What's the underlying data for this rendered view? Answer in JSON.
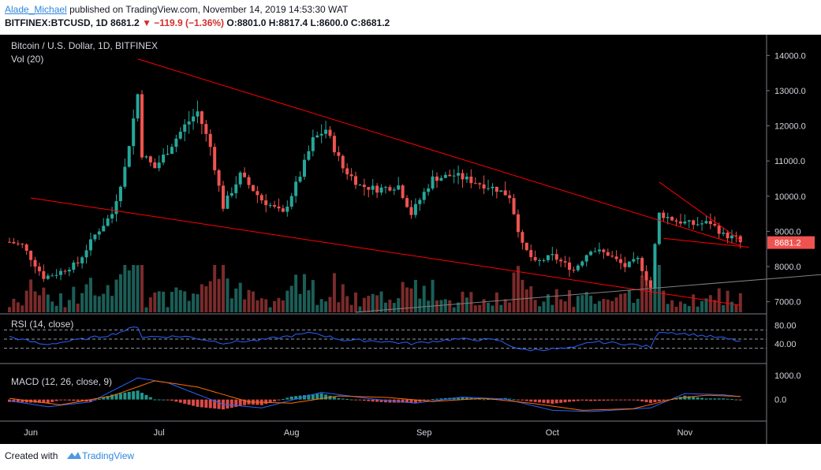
{
  "header": {
    "author": "Alade_Michael",
    "published_text": "published on TradingView.com, November 14, 2019 14:53:30 WAT",
    "symbol": "BITFINEX:BTCUSD, 1D",
    "last": "8681.2",
    "change": "−119.9 (−1.36%)",
    "open": "O:8801.0",
    "high": "H:8817.4",
    "low": "L:8600.0",
    "close": "C:8681.2",
    "change_color": "#d32f2f"
  },
  "footer": {
    "created_with": "Created with",
    "brand": "TradingView"
  },
  "chart_data": {
    "type": "candlestick",
    "title": "Bitcoin / U.S. Dollar, 1D, BITFINEX",
    "volume_label": "Vol (20)",
    "price_axis_ticks": [
      "14000.0",
      "13000.0",
      "12000.0",
      "11000.0",
      "10000.0",
      "9000.0",
      "8000.0",
      "7000.0"
    ],
    "price_range": [
      6700,
      14500
    ],
    "last_price_label": "8681.2",
    "x_tick_labels": [
      "Jun",
      "Jul",
      "Aug",
      "Sep",
      "Oct",
      "Nov"
    ],
    "colors": {
      "up": "#26a69a",
      "down": "#ef5350",
      "trendline": "#ff0000",
      "support": "#808080",
      "rsi": "#2962ff",
      "macd": "#2962ff",
      "signal": "#ff6d00",
      "background": "#000000"
    },
    "price_anchors": [
      [
        "2019-05-27",
        8700
      ],
      [
        "2019-05-30",
        8600
      ],
      [
        "2019-06-04",
        7700
      ],
      [
        "2019-06-07",
        7800
      ],
      [
        "2019-06-12",
        8100
      ],
      [
        "2019-06-16",
        8900
      ],
      [
        "2019-06-20",
        9500
      ],
      [
        "2019-06-23",
        10800
      ],
      [
        "2019-06-26",
        12900
      ],
      [
        "2019-06-27",
        11200
      ],
      [
        "2019-06-30",
        10800
      ],
      [
        "2019-07-03",
        11300
      ],
      [
        "2019-07-07",
        12000
      ],
      [
        "2019-07-10",
        12400
      ],
      [
        "2019-07-13",
        11400
      ],
      [
        "2019-07-16",
        9700
      ],
      [
        "2019-07-20",
        10600
      ],
      [
        "2019-07-25",
        9900
      ],
      [
        "2019-07-30",
        9500
      ],
      [
        "2019-08-03",
        10600
      ],
      [
        "2019-08-06",
        11600
      ],
      [
        "2019-08-09",
        11900
      ],
      [
        "2019-08-13",
        10800
      ],
      [
        "2019-08-17",
        10300
      ],
      [
        "2019-08-21",
        10200
      ],
      [
        "2019-08-26",
        10300
      ],
      [
        "2019-08-29",
        9500
      ],
      [
        "2019-09-03",
        10500
      ],
      [
        "2019-09-08",
        10600
      ],
      [
        "2019-09-13",
        10400
      ],
      [
        "2019-09-18",
        10200
      ],
      [
        "2019-09-21",
        10000
      ],
      [
        "2019-09-24",
        8600
      ],
      [
        "2019-09-27",
        8100
      ],
      [
        "2019-10-01",
        8300
      ],
      [
        "2019-10-06",
        7900
      ],
      [
        "2019-10-10",
        8500
      ],
      [
        "2019-10-14",
        8350
      ],
      [
        "2019-10-18",
        8000
      ],
      [
        "2019-10-21",
        8200
      ],
      [
        "2019-10-24",
        7400
      ],
      [
        "2019-10-25",
        8600
      ],
      [
        "2019-10-26",
        9500
      ],
      [
        "2019-10-30",
        9300
      ],
      [
        "2019-11-03",
        9200
      ],
      [
        "2019-11-07",
        9250
      ],
      [
        "2019-11-10",
        8900
      ],
      [
        "2019-11-13",
        8800
      ],
      [
        "2019-11-14",
        8681.2
      ]
    ],
    "trendlines": [
      {
        "name": "upper-channel",
        "from": [
          "2019-06-26",
          13900
        ],
        "to": [
          "2019-11-14",
          8600
        ]
      },
      {
        "name": "lower-channel",
        "from": [
          "2019-06-01",
          9950
        ],
        "to": [
          "2019-11-14",
          6900
        ]
      },
      {
        "name": "wedge-upper",
        "from": [
          "2019-10-26",
          10400
        ],
        "to": [
          "2019-11-14",
          8750
        ]
      },
      {
        "name": "wedge-lower",
        "from": [
          "2019-10-27",
          8800
        ],
        "to": [
          "2019-11-16",
          8550
        ]
      },
      {
        "name": "support",
        "from": [
          "2019-08-16",
          6700
        ],
        "to": [
          "2019-12-11",
          7850
        ]
      }
    ],
    "rsi": {
      "label": "RSI (14, close)",
      "ticks": [
        "80.00",
        "40.00"
      ],
      "levels": [
        70,
        50,
        30
      ],
      "range": [
        0,
        100
      ],
      "anchors": [
        [
          "2019-05-27",
          55
        ],
        [
          "2019-06-04",
          38
        ],
        [
          "2019-06-12",
          48
        ],
        [
          "2019-06-20",
          60
        ],
        [
          "2019-06-26",
          78
        ],
        [
          "2019-06-27",
          55
        ],
        [
          "2019-07-07",
          56
        ],
        [
          "2019-07-16",
          42
        ],
        [
          "2019-07-25",
          48
        ],
        [
          "2019-08-06",
          64
        ],
        [
          "2019-08-13",
          48
        ],
        [
          "2019-08-21",
          46
        ],
        [
          "2019-08-29",
          40
        ],
        [
          "2019-09-08",
          50
        ],
        [
          "2019-09-18",
          48
        ],
        [
          "2019-09-24",
          26
        ],
        [
          "2019-10-06",
          30
        ],
        [
          "2019-10-10",
          44
        ],
        [
          "2019-10-18",
          40
        ],
        [
          "2019-10-24",
          33
        ],
        [
          "2019-10-26",
          67
        ],
        [
          "2019-11-03",
          60
        ],
        [
          "2019-11-10",
          52
        ],
        [
          "2019-11-14",
          45
        ]
      ]
    },
    "macd": {
      "label": "MACD (12, 26, close, 9)",
      "ticks": [
        "1000.0",
        "0.0"
      ],
      "range": [
        -800,
        1400
      ],
      "macd_anchors": [
        [
          "2019-05-27",
          -50
        ],
        [
          "2019-06-05",
          -300
        ],
        [
          "2019-06-15",
          -100
        ],
        [
          "2019-06-26",
          900
        ],
        [
          "2019-07-03",
          700
        ],
        [
          "2019-07-16",
          -200
        ],
        [
          "2019-07-25",
          -350
        ],
        [
          "2019-08-08",
          300
        ],
        [
          "2019-08-20",
          20
        ],
        [
          "2019-08-30",
          -150
        ],
        [
          "2019-09-10",
          100
        ],
        [
          "2019-09-20",
          20
        ],
        [
          "2019-10-01",
          -450
        ],
        [
          "2019-10-10",
          -500
        ],
        [
          "2019-10-24",
          -350
        ],
        [
          "2019-11-01",
          250
        ],
        [
          "2019-11-10",
          200
        ],
        [
          "2019-11-14",
          120
        ]
      ],
      "signal_anchors": [
        [
          "2019-05-27",
          50
        ],
        [
          "2019-06-08",
          -220
        ],
        [
          "2019-06-20",
          150
        ],
        [
          "2019-06-30",
          780
        ],
        [
          "2019-07-10",
          520
        ],
        [
          "2019-07-22",
          -100
        ],
        [
          "2019-08-01",
          -150
        ],
        [
          "2019-08-12",
          150
        ],
        [
          "2019-08-24",
          80
        ],
        [
          "2019-09-03",
          -80
        ],
        [
          "2019-09-15",
          50
        ],
        [
          "2019-09-26",
          -150
        ],
        [
          "2019-10-08",
          -450
        ],
        [
          "2019-10-20",
          -380
        ],
        [
          "2019-10-30",
          50
        ],
        [
          "2019-11-06",
          180
        ],
        [
          "2019-11-14",
          130
        ]
      ]
    }
  }
}
